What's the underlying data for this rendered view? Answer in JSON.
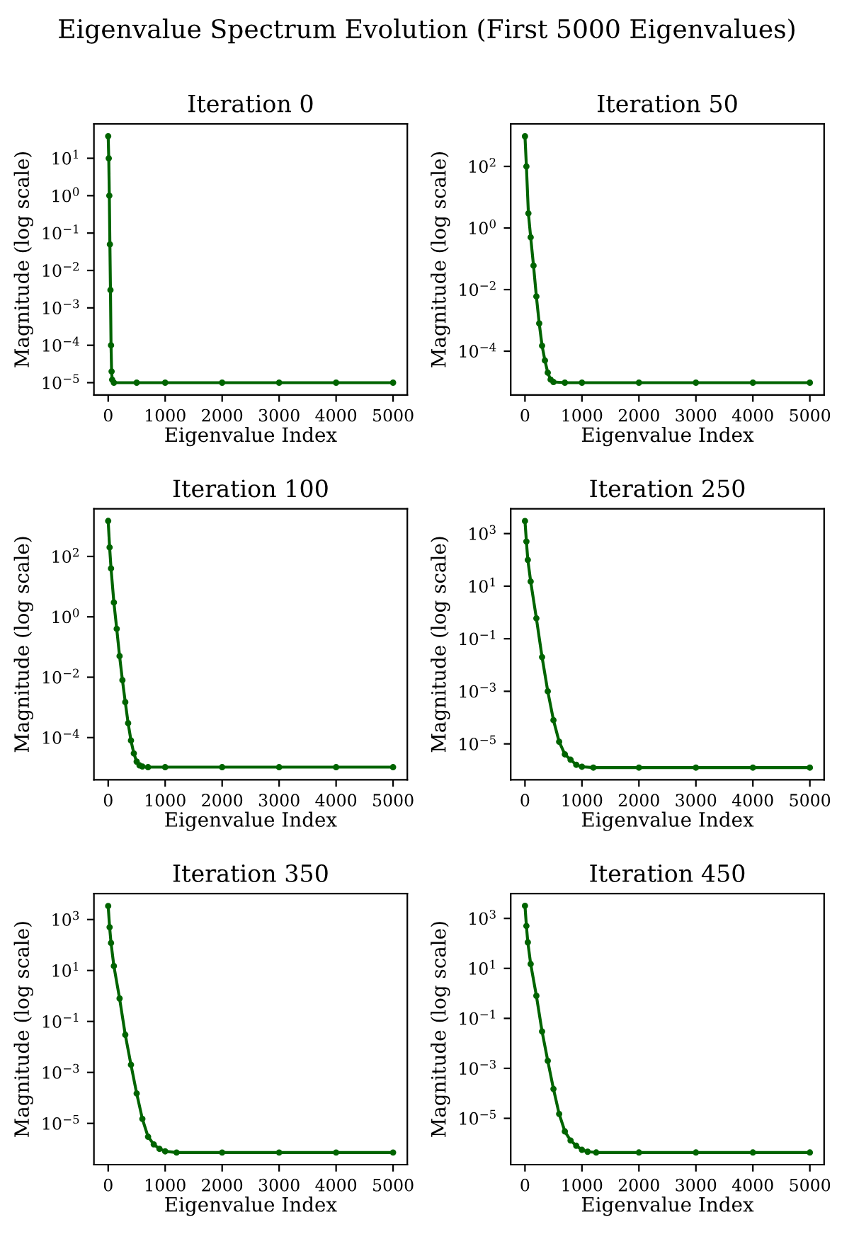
{
  "chart_data": [
    {
      "type": "line",
      "title": "Iteration 0",
      "xlabel": "Eigenvalue Index",
      "ylabel": "Magnitude (log scale)",
      "annotations": [
        "Eigenvalue Spectrum Evolution (First 5000 Eigenvalues)"
      ],
      "log": "y",
      "marker": "circle",
      "line_style": "solid",
      "xlim": [
        -250,
        5250
      ],
      "xticks": [
        0,
        1000,
        2000,
        3000,
        4000,
        5000
      ],
      "ylim": [
        4.7e-06,
        83
      ],
      "yticks": [
        {
          "value": 1e-05,
          "label": "10$^{−5}$"
        },
        {
          "value": 0.0001,
          "label": "10$^{−4}$"
        },
        {
          "value": 0.001,
          "label": "10$^{−3}$"
        },
        {
          "value": 0.01,
          "label": "10$^{−2}$"
        },
        {
          "value": 0.1,
          "label": "10$^{−1}$"
        },
        {
          "value": 1,
          "label": "10$^{0}$"
        },
        {
          "value": 10,
          "label": "10$^{1}$"
        }
      ],
      "x": [
        0,
        10,
        20,
        30,
        40,
        50,
        60,
        70,
        100,
        500,
        1000,
        2000,
        3000,
        4000,
        5000
      ],
      "series": [
        {
          "color": "#006400",
          "values": [
            39,
            10,
            1,
            0.05,
            0.003,
            0.0001,
            2e-05,
            1.2e-05,
            1e-05,
            1e-05,
            1e-05,
            1e-05,
            1e-05,
            1e-05,
            1e-05
          ]
        }
      ]
    },
    {
      "type": "line",
      "title": "Iteration 50",
      "xlabel": "Eigenvalue Index",
      "ylabel": "Magnitude (log scale)",
      "log": "y",
      "marker": "circle",
      "line_style": "solid",
      "xlim": [
        -250,
        5250
      ],
      "xticks": [
        0,
        1000,
        2000,
        3000,
        4000,
        5000
      ],
      "ylim": [
        3.8e-06,
        2400
      ],
      "yticks": [
        {
          "value": 0.0001,
          "label": "10$^{−4}$"
        },
        {
          "value": 0.01,
          "label": "10$^{−2}$"
        },
        {
          "value": 1,
          "label": "10$^{0}$"
        },
        {
          "value": 100,
          "label": "10$^{2}$"
        }
      ],
      "x": [
        0,
        25,
        60,
        100,
        150,
        200,
        250,
        300,
        350,
        400,
        450,
        500,
        700,
        1000,
        2000,
        3000,
        4000,
        5000
      ],
      "series": [
        {
          "color": "#006400",
          "values": [
            950,
            100,
            3,
            0.5,
            0.06,
            0.006,
            0.0008,
            0.00015,
            5e-05,
            2e-05,
            1.2e-05,
            1e-05,
            9.5e-06,
            9.5e-06,
            9.5e-06,
            9.5e-06,
            9.5e-06,
            9.5e-06
          ]
        }
      ]
    },
    {
      "type": "line",
      "title": "Iteration 100",
      "xlabel": "Eigenvalue Index",
      "ylabel": "Magnitude (log scale)",
      "log": "y",
      "marker": "circle",
      "line_style": "solid",
      "xlim": [
        -250,
        5250
      ],
      "xticks": [
        0,
        1000,
        2000,
        3000,
        4000,
        5000
      ],
      "ylim": [
        4e-06,
        3800
      ],
      "yticks": [
        {
          "value": 0.0001,
          "label": "10$^{−4}$"
        },
        {
          "value": 0.01,
          "label": "10$^{−2}$"
        },
        {
          "value": 1,
          "label": "10$^{0}$"
        },
        {
          "value": 100,
          "label": "10$^{2}$"
        }
      ],
      "x": [
        0,
        25,
        50,
        100,
        150,
        200,
        250,
        300,
        350,
        400,
        450,
        500,
        550,
        600,
        700,
        1000,
        2000,
        3000,
        4000,
        5000
      ],
      "series": [
        {
          "color": "#006400",
          "values": [
            1500,
            200,
            40,
            3,
            0.4,
            0.05,
            0.008,
            0.0015,
            0.0003,
            8e-05,
            3e-05,
            1.6e-05,
            1.2e-05,
            1.1e-05,
            1.05e-05,
            1.05e-05,
            1.05e-05,
            1.05e-05,
            1.05e-05,
            1.05e-05
          ]
        }
      ]
    },
    {
      "type": "line",
      "title": "Iteration 250",
      "xlabel": "Eigenvalue Index",
      "ylabel": "Magnitude (log scale)",
      "log": "y",
      "marker": "circle",
      "line_style": "solid",
      "xlim": [
        -250,
        5250
      ],
      "xticks": [
        0,
        1000,
        2000,
        3000,
        4000,
        5000
      ],
      "ylim": [
        4.3e-07,
        8800
      ],
      "yticks": [
        {
          "value": 1e-05,
          "label": "10$^{−5}$"
        },
        {
          "value": 0.001,
          "label": "10$^{−3}$"
        },
        {
          "value": 0.1,
          "label": "10$^{−1}$"
        },
        {
          "value": 10,
          "label": "10$^{1}$"
        },
        {
          "value": 1000,
          "label": "10$^{3}$"
        }
      ],
      "x": [
        0,
        25,
        50,
        100,
        200,
        300,
        400,
        500,
        600,
        700,
        800,
        900,
        1000,
        1200,
        2000,
        3000,
        4000,
        5000
      ],
      "series": [
        {
          "color": "#006400",
          "values": [
            3000,
            500,
            100,
            15,
            0.6,
            0.02,
            0.001,
            8e-05,
            1.2e-05,
            4e-06,
            2.5e-06,
            1.6e-06,
            1.35e-06,
            1.25e-06,
            1.25e-06,
            1.25e-06,
            1.25e-06,
            1.25e-06
          ]
        }
      ]
    },
    {
      "type": "line",
      "title": "Iteration 350",
      "xlabel": "Eigenvalue Index",
      "ylabel": "Magnitude (log scale)",
      "log": "y",
      "marker": "circle",
      "line_style": "solid",
      "xlim": [
        -250,
        5250
      ],
      "xticks": [
        0,
        1000,
        2000,
        3000,
        4000,
        5000
      ],
      "ylim": [
        2.4e-07,
        10400
      ],
      "yticks": [
        {
          "value": 1e-05,
          "label": "10$^{−5}$"
        },
        {
          "value": 0.001,
          "label": "10$^{−3}$"
        },
        {
          "value": 0.1,
          "label": "10$^{−1}$"
        },
        {
          "value": 10,
          "label": "10$^{1}$"
        },
        {
          "value": 1000,
          "label": "10$^{3}$"
        }
      ],
      "x": [
        0,
        25,
        50,
        100,
        200,
        300,
        400,
        500,
        600,
        700,
        800,
        900,
        1000,
        1200,
        2000,
        3000,
        4000,
        5000
      ],
      "series": [
        {
          "color": "#006400",
          "values": [
            3400,
            500,
            120,
            15,
            0.8,
            0.03,
            0.002,
            0.00015,
            1.5e-05,
            3e-06,
            1.5e-06,
            1e-06,
            8e-07,
            7.2e-07,
            7.2e-07,
            7.2e-07,
            7.2e-07,
            7.2e-07
          ]
        }
      ]
    },
    {
      "type": "line",
      "title": "Iteration 450",
      "xlabel": "Eigenvalue Index",
      "ylabel": "Magnitude (log scale)",
      "log": "y",
      "marker": "circle",
      "line_style": "solid",
      "xlim": [
        -250,
        5250
      ],
      "xticks": [
        0,
        1000,
        2000,
        3000,
        4000,
        5000
      ],
      "ylim": [
        1.4e-07,
        9800
      ],
      "yticks": [
        {
          "value": 1e-05,
          "label": "10$^{−5}$"
        },
        {
          "value": 0.001,
          "label": "10$^{−3}$"
        },
        {
          "value": 0.1,
          "label": "10$^{−1}$"
        },
        {
          "value": 10,
          "label": "10$^{1}$"
        },
        {
          "value": 1000,
          "label": "10$^{3}$"
        }
      ],
      "x": [
        0,
        25,
        50,
        100,
        200,
        300,
        400,
        500,
        600,
        700,
        800,
        900,
        1000,
        1100,
        1250,
        2000,
        3000,
        4000,
        5000
      ],
      "series": [
        {
          "color": "#006400",
          "values": [
            3200,
            500,
            110,
            15,
            0.8,
            0.03,
            0.002,
            0.00015,
            1.5e-05,
            3e-06,
            1.3e-06,
            8e-07,
            5.5e-07,
            4.6e-07,
            4.3e-07,
            4.3e-07,
            4.3e-07,
            4.3e-07,
            4.3e-07
          ]
        }
      ]
    }
  ]
}
